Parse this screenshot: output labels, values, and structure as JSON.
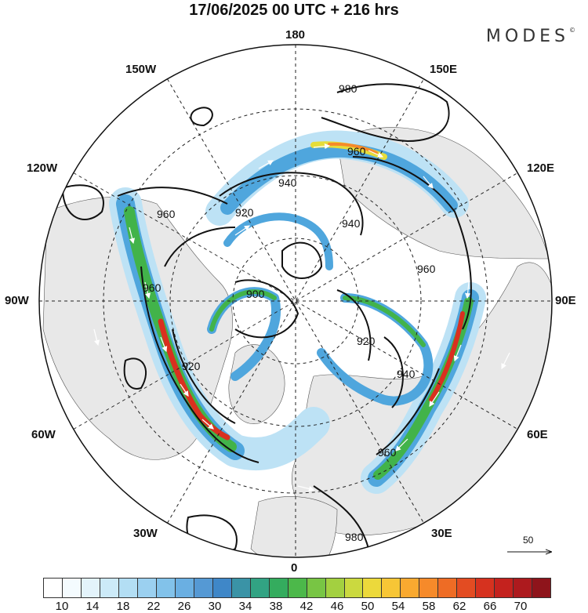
{
  "header": {
    "title": "17/06/2025  00 UTC  + 216 hrs",
    "brand": "MODES",
    "brand_mark": "©"
  },
  "longitude_labels": {
    "top": "180",
    "bottom": "0",
    "left": "90W",
    "right": "90E",
    "upper_left_1": "150W",
    "upper_left_2": "120W",
    "lower_left_1": "60W",
    "lower_left_2": "30W",
    "upper_right_1": "150E",
    "upper_right_2": "120E",
    "lower_right_1": "60E",
    "lower_right_2": "30E"
  },
  "contour_labels": [
    "980",
    "960",
    "940",
    "920",
    "940",
    "960",
    "960",
    "900",
    "920",
    "960",
    "920",
    "940",
    "960",
    "980"
  ],
  "wind_key": {
    "label": "50"
  },
  "colorbar": {
    "colors": [
      "#ffffff",
      "#f4fbfe",
      "#e3f3fb",
      "#cceaf8",
      "#b3def4",
      "#9bd0f0",
      "#82c2ea",
      "#6aafe2",
      "#5599d4",
      "#3f87c8",
      "#3a93a6",
      "#32a383",
      "#34ac5e",
      "#4cb84a",
      "#78c544",
      "#a3d040",
      "#cbd93f",
      "#ecd93b",
      "#f7c636",
      "#f9a930",
      "#f68a2a",
      "#ee6c25",
      "#e34c22",
      "#d6321f",
      "#c4221e",
      "#ad1a1e",
      "#8e141b"
    ],
    "tick_labels": [
      "10",
      "14",
      "18",
      "22",
      "26",
      "30",
      "34",
      "38",
      "42",
      "46",
      "50",
      "54",
      "58",
      "62",
      "66",
      "70"
    ]
  },
  "colors": {
    "land_gray": "#e8e8e8",
    "ocean_white": "#ffffff",
    "jet_low": "#bde2f5",
    "jet_mid": "#4fa6dd",
    "jet_green": "#42b34a",
    "jet_yellow": "#e6dd3a",
    "jet_red": "#d9301f"
  }
}
